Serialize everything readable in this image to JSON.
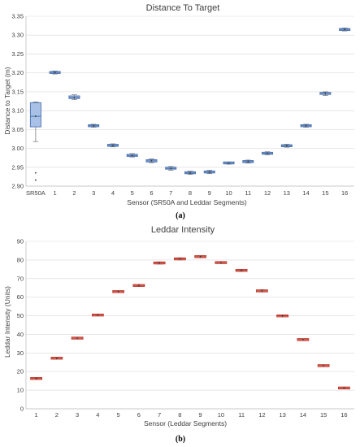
{
  "chart_data": [
    {
      "type": "box",
      "title": "Distance To Target",
      "xlabel": "Sensor (SR50A and Leddar Segments)",
      "ylabel": "Distance to Target (m)",
      "caption": "(a)",
      "ylim": [
        2.9,
        3.35
      ],
      "yticks": [
        "2.90",
        "2.95",
        "3.00",
        "3.05",
        "3.10",
        "3.15",
        "3.20",
        "3.25",
        "3.30",
        "3.35"
      ],
      "grid": true,
      "color": "#4a72b0",
      "fill": "#a9c1e6",
      "categories": [
        "SR50A",
        "1",
        "2",
        "3",
        "4",
        "5",
        "6",
        "7",
        "8",
        "9",
        "10",
        "11",
        "12",
        "13",
        "14",
        "15",
        "16"
      ],
      "boxes": [
        {
          "min": 3.018,
          "q1": 3.057,
          "median": 3.085,
          "q3": 3.121,
          "max": 3.123,
          "outliers": [
            2.935,
            2.916
          ]
        },
        {
          "min": 3.197,
          "q1": 3.199,
          "median": 3.201,
          "q3": 3.203,
          "max": 3.205,
          "outliers": []
        },
        {
          "min": 3.129,
          "q1": 3.132,
          "median": 3.135,
          "q3": 3.139,
          "max": 3.142,
          "outliers": []
        },
        {
          "min": 3.056,
          "q1": 3.058,
          "median": 3.06,
          "q3": 3.062,
          "max": 3.064,
          "outliers": []
        },
        {
          "min": 3.004,
          "q1": 3.006,
          "median": 3.008,
          "q3": 3.01,
          "max": 3.012,
          "outliers": []
        },
        {
          "min": 2.977,
          "q1": 2.979,
          "median": 2.981,
          "q3": 2.984,
          "max": 2.986,
          "outliers": []
        },
        {
          "min": 2.962,
          "q1": 2.964,
          "median": 2.967,
          "q3": 2.97,
          "max": 2.972,
          "outliers": []
        },
        {
          "min": 2.942,
          "q1": 2.945,
          "median": 2.947,
          "q3": 2.95,
          "max": 2.952,
          "outliers": []
        },
        {
          "min": 2.931,
          "q1": 2.933,
          "median": 2.935,
          "q3": 2.938,
          "max": 2.94,
          "outliers": []
        },
        {
          "min": 2.933,
          "q1": 2.935,
          "median": 2.937,
          "q3": 2.94,
          "max": 2.942,
          "outliers": []
        },
        {
          "min": 2.958,
          "q1": 2.96,
          "median": 2.961,
          "q3": 2.963,
          "max": 2.964,
          "outliers": []
        },
        {
          "min": 2.961,
          "q1": 2.963,
          "median": 2.965,
          "q3": 2.967,
          "max": 2.969,
          "outliers": []
        },
        {
          "min": 2.983,
          "q1": 2.985,
          "median": 2.987,
          "q3": 2.989,
          "max": 2.991,
          "outliers": []
        },
        {
          "min": 3.003,
          "q1": 3.005,
          "median": 3.007,
          "q3": 3.009,
          "max": 3.011,
          "outliers": []
        },
        {
          "min": 3.056,
          "q1": 3.058,
          "median": 3.06,
          "q3": 3.062,
          "max": 3.064,
          "outliers": []
        },
        {
          "min": 3.14,
          "q1": 3.143,
          "median": 3.146,
          "q3": 3.148,
          "max": 3.15,
          "outliers": []
        },
        {
          "min": 3.311,
          "q1": 3.313,
          "median": 3.315,
          "q3": 3.317,
          "max": 3.319,
          "outliers": []
        }
      ]
    },
    {
      "type": "box",
      "title": "Leddar Intensity",
      "xlabel": "Sensor (Leddar Segments)",
      "ylabel": "Leddar Intensity (Units)",
      "caption": "(b)",
      "ylim": [
        0,
        90
      ],
      "yticks": [
        "0",
        "10",
        "20",
        "30",
        "40",
        "50",
        "60",
        "70",
        "80",
        "90"
      ],
      "grid": true,
      "color": "#c0392b",
      "fill": "#e6a5a5",
      "categories": [
        "1",
        "2",
        "3",
        "4",
        "5",
        "6",
        "7",
        "8",
        "9",
        "10",
        "11",
        "12",
        "13",
        "14",
        "15",
        "16"
      ],
      "boxes": [
        {
          "min": 15.9,
          "q1": 16.1,
          "median": 16.3,
          "q3": 16.5,
          "max": 16.7,
          "outliers": []
        },
        {
          "min": 26.8,
          "q1": 27.0,
          "median": 27.2,
          "q3": 27.4,
          "max": 27.6,
          "outliers": []
        },
        {
          "min": 37.6,
          "q1": 37.8,
          "median": 38.0,
          "q3": 38.2,
          "max": 38.4,
          "outliers": []
        },
        {
          "min": 50.0,
          "q1": 50.2,
          "median": 50.4,
          "q3": 50.6,
          "max": 50.8,
          "outliers": []
        },
        {
          "min": 62.6,
          "q1": 62.8,
          "median": 63.0,
          "q3": 63.2,
          "max": 63.4,
          "outliers": []
        },
        {
          "min": 65.8,
          "q1": 66.0,
          "median": 66.3,
          "q3": 66.6,
          "max": 66.8,
          "outliers": []
        },
        {
          "min": 77.8,
          "q1": 78.1,
          "median": 78.4,
          "q3": 78.7,
          "max": 79.0,
          "outliers": []
        },
        {
          "min": 80.0,
          "q1": 80.3,
          "median": 80.6,
          "q3": 80.9,
          "max": 81.2,
          "outliers": []
        },
        {
          "min": 81.2,
          "q1": 81.5,
          "median": 81.8,
          "q3": 82.1,
          "max": 82.4,
          "outliers": []
        },
        {
          "min": 78.2,
          "q1": 78.4,
          "median": 78.6,
          "q3": 78.8,
          "max": 79.0,
          "outliers": []
        },
        {
          "min": 73.8,
          "q1": 74.1,
          "median": 74.4,
          "q3": 74.7,
          "max": 75.0,
          "outliers": []
        },
        {
          "min": 62.8,
          "q1": 63.1,
          "median": 63.4,
          "q3": 63.7,
          "max": 64.0,
          "outliers": []
        },
        {
          "min": 49.5,
          "q1": 49.7,
          "median": 50.0,
          "q3": 50.2,
          "max": 50.4,
          "outliers": []
        },
        {
          "min": 36.8,
          "q1": 37.0,
          "median": 37.2,
          "q3": 37.4,
          "max": 37.6,
          "outliers": []
        },
        {
          "min": 22.8,
          "q1": 23.0,
          "median": 23.2,
          "q3": 23.4,
          "max": 23.6,
          "outliers": []
        },
        {
          "min": 10.8,
          "q1": 11.0,
          "median": 11.2,
          "q3": 11.4,
          "max": 11.6,
          "outliers": []
        }
      ]
    }
  ]
}
